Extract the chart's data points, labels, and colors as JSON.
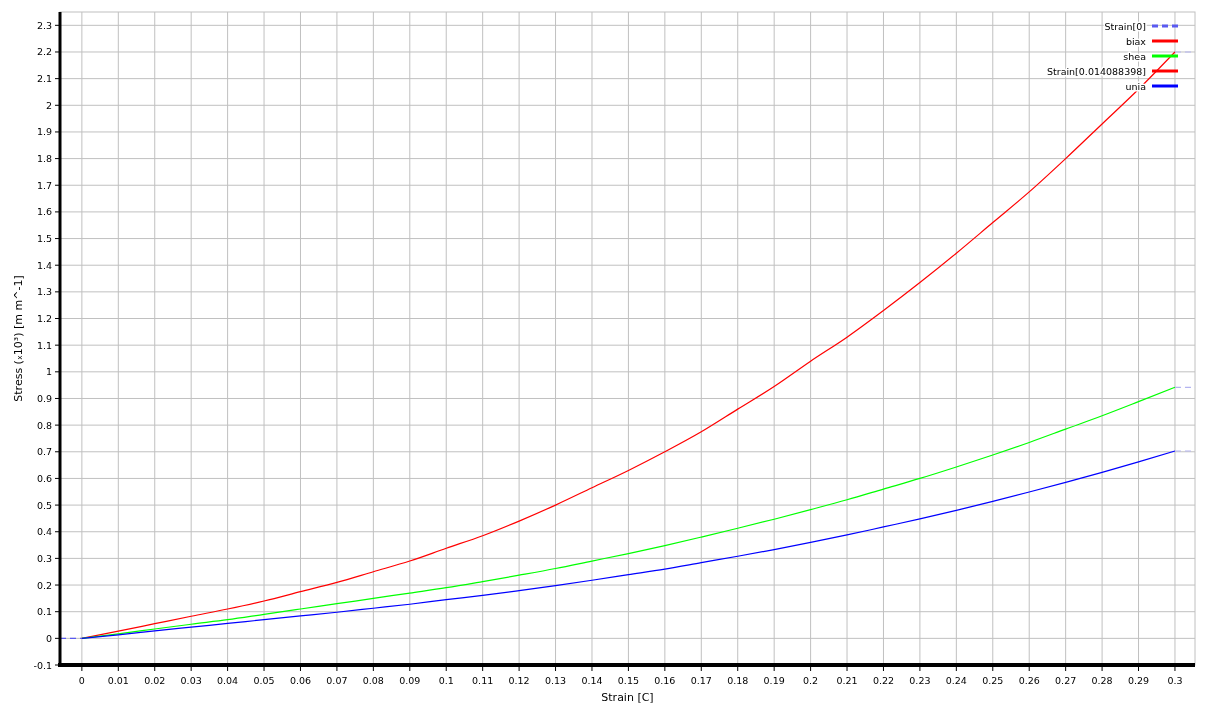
{
  "chart_data": {
    "type": "line",
    "xlabel": "Strain  [C]",
    "ylabel": "Stress  (ₓ10³)  [m m^-1]",
    "x": [
      0,
      0.01,
      0.02,
      0.03,
      0.04,
      0.05,
      0.06,
      0.07,
      0.08,
      0.09,
      0.1,
      0.11,
      0.12,
      0.13,
      0.14,
      0.15,
      0.16,
      0.17,
      0.18,
      0.19,
      0.2,
      0.21,
      0.22,
      0.23,
      0.24,
      0.25,
      0.26,
      0.27,
      0.28,
      0.29,
      0.3
    ],
    "series": [
      {
        "name": "Strain[0]",
        "color": "#5a5af0",
        "x": [
          -0.006,
          0
        ],
        "values": [
          0,
          0
        ],
        "line_style": "dashed"
      },
      {
        "name": "biax",
        "color": "#ff0000",
        "values": [
          0,
          0.027,
          0.055,
          0.083,
          0.11,
          0.14,
          0.175,
          0.21,
          0.25,
          0.29,
          0.338,
          0.385,
          0.44,
          0.5,
          0.565,
          0.63,
          0.7,
          0.775,
          0.86,
          0.945,
          1.04,
          1.13,
          1.23,
          1.335,
          1.445,
          1.56,
          1.675,
          1.8,
          1.93,
          2.06,
          2.2
        ]
      },
      {
        "name": "shea",
        "color": "#00ff00",
        "values": [
          0,
          0.017,
          0.035,
          0.053,
          0.07,
          0.09,
          0.11,
          0.13,
          0.15,
          0.17,
          0.19,
          0.213,
          0.237,
          0.262,
          0.29,
          0.318,
          0.348,
          0.38,
          0.413,
          0.447,
          0.483,
          0.52,
          0.56,
          0.6,
          0.643,
          0.688,
          0.735,
          0.785,
          0.835,
          0.888,
          0.942
        ]
      },
      {
        "name": "Strain[0.014088398]",
        "color": "#ff0000",
        "values": [
          null,
          null,
          null,
          null,
          null,
          null,
          null,
          null,
          null,
          null,
          null,
          null,
          null,
          null,
          null,
          null,
          null,
          null,
          null,
          null,
          null,
          null,
          null,
          null,
          null,
          null,
          null,
          null,
          null,
          null,
          null
        ]
      },
      {
        "name": "unia",
        "color": "#0000ff",
        "values": [
          0,
          0.013,
          0.028,
          0.042,
          0.056,
          0.07,
          0.084,
          0.098,
          0.113,
          0.128,
          0.145,
          0.161,
          0.179,
          0.198,
          0.218,
          0.239,
          0.26,
          0.284,
          0.308,
          0.333,
          0.36,
          0.388,
          0.418,
          0.448,
          0.48,
          0.514,
          0.549,
          0.585,
          0.623,
          0.662,
          0.703
        ]
      },
      {
        "color": "#b4b4f0",
        "x": [
          0.3,
          0.3055
        ],
        "values": [
          2.2,
          2.2
        ],
        "line_style": "dashed"
      },
      {
        "color": "#b4b4f0",
        "x": [
          0.3,
          0.3055
        ],
        "values": [
          0.942,
          0.942
        ],
        "line_style": "dashed"
      },
      {
        "color": "#b4b4f0",
        "x": [
          0.3,
          0.3055
        ],
        "values": [
          0.703,
          0.703
        ],
        "line_style": "dashed"
      }
    ],
    "xlim": [
      -0.006,
      0.3055
    ],
    "ylim": [
      -0.1,
      2.35
    ],
    "xticks": [
      0,
      0.01,
      0.02,
      0.03,
      0.04,
      0.05,
      0.06,
      0.07,
      0.08,
      0.09,
      0.1,
      0.11,
      0.12,
      0.13,
      0.14,
      0.15,
      0.16,
      0.17,
      0.18,
      0.19,
      0.2,
      0.21,
      0.22,
      0.23,
      0.24,
      0.25,
      0.26,
      0.27,
      0.28,
      0.29,
      0.3
    ],
    "yticks": [
      -0.1,
      0,
      0.1,
      0.2,
      0.3,
      0.4,
      0.5,
      0.6,
      0.7,
      0.8,
      0.9,
      1,
      1.1,
      1.2,
      1.3,
      1.4,
      1.5,
      1.6,
      1.7,
      1.8,
      1.9,
      2,
      2.1,
      2.2,
      2.3
    ],
    "grid": true,
    "legend": "top right",
    "marker": "none"
  }
}
